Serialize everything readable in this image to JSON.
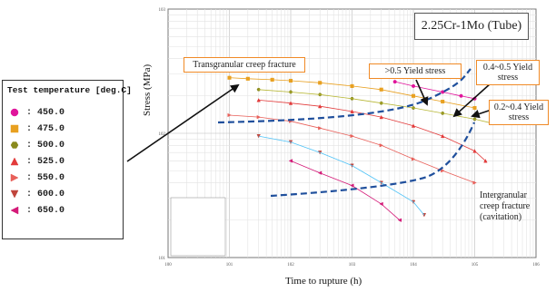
{
  "chart_data": {
    "type": "scatter",
    "title": "2.25Cr-1Mo (Tube)",
    "xlabel": "Time to rupture (h)",
    "ylabel": "Stress (MPa)",
    "x_scale": "log",
    "y_scale": "log",
    "xlim": [
      1,
      1000000
    ],
    "ylim": [
      10,
      1000
    ],
    "grid": true,
    "legend_title": "Test temperature [deg.C]",
    "legend_position": "external-left",
    "series": [
      {
        "name": ": 450.0",
        "marker": "circle",
        "color": "#e0149b",
        "points": [
          [
            5000,
            260
          ],
          [
            10000,
            240
          ],
          [
            30000,
            215
          ],
          [
            60000,
            200
          ],
          [
            100000,
            190
          ]
        ]
      },
      {
        "name": ": 475.0",
        "marker": "square",
        "color": "#e8a020",
        "points": [
          [
            10,
            280
          ],
          [
            20,
            275
          ],
          [
            50,
            270
          ],
          [
            100,
            265
          ],
          [
            300,
            255
          ],
          [
            1000,
            240
          ],
          [
            3000,
            225
          ],
          [
            10000,
            200
          ],
          [
            30000,
            180
          ],
          [
            100000,
            160
          ]
        ]
      },
      {
        "name": ": 500.0",
        "marker": "hexagon",
        "color": "#8a8a1c",
        "points": [
          [
            30,
            225
          ],
          [
            100,
            215
          ],
          [
            300,
            205
          ],
          [
            1000,
            190
          ],
          [
            3000,
            175
          ],
          [
            10000,
            160
          ],
          [
            30000,
            145
          ],
          [
            100000,
            130
          ],
          [
            200000,
            120
          ]
        ]
      },
      {
        "name": ": 525.0",
        "marker": "triangle-up",
        "color": "#e23b3b",
        "points": [
          [
            30,
            185
          ],
          [
            100,
            175
          ],
          [
            300,
            165
          ],
          [
            1000,
            150
          ],
          [
            3000,
            135
          ],
          [
            10000,
            115
          ],
          [
            30000,
            95
          ],
          [
            100000,
            72
          ],
          [
            150000,
            60
          ]
        ]
      },
      {
        "name": ": 550.0",
        "marker": "triangle-right",
        "color": "#e8605a",
        "points": [
          [
            10,
            140
          ],
          [
            30,
            135
          ],
          [
            100,
            125
          ],
          [
            300,
            110
          ],
          [
            1000,
            95
          ],
          [
            3000,
            80
          ],
          [
            10000,
            62
          ],
          [
            30000,
            50
          ],
          [
            100000,
            40
          ]
        ]
      },
      {
        "name": ": 600.0",
        "marker": "triangle-down",
        "color": "#c0453c",
        "points": [
          [
            30,
            95
          ],
          [
            100,
            85
          ],
          [
            300,
            70
          ],
          [
            1000,
            55
          ],
          [
            3000,
            40
          ],
          [
            10000,
            28
          ],
          [
            15000,
            22
          ]
        ]
      },
      {
        "name": ": 650.0",
        "marker": "triangle-left",
        "color": "#d41a78",
        "points": [
          [
            100,
            60
          ],
          [
            300,
            48
          ],
          [
            1000,
            38
          ],
          [
            3000,
            27
          ],
          [
            6000,
            20
          ]
        ]
      }
    ],
    "annotations": [
      "Transgranular creep fracture",
      ">0.5 Yield stress",
      "0.4~0.5 Yield stress",
      "0.2~0.4 Yield stress",
      "Intergranular creep fracture (cavitation)"
    ]
  },
  "legend": {
    "title": "Test temperature [deg.C]",
    "items": [
      {
        "label": ": 450.0",
        "marker": "circle",
        "color": "#e0149b"
      },
      {
        "label": ": 475.0",
        "marker": "square",
        "color": "#e8a020"
      },
      {
        "label": ": 500.0",
        "marker": "hexagon",
        "color": "#8a8a1c"
      },
      {
        "label": ": 525.0",
        "marker": "triangle-up",
        "color": "#e23b3b"
      },
      {
        "label": ": 550.0",
        "marker": "triangle-right",
        "color": "#e8605a"
      },
      {
        "label": ": 600.0",
        "marker": "triangle-down",
        "color": "#c0453c"
      },
      {
        "label": ": 650.0",
        "marker": "triangle-left",
        "color": "#d41a78"
      }
    ]
  },
  "annotations": {
    "transgranular": "Transgranular creep fracture",
    "gt05": ">0.5 Yield stress",
    "r0405": "0.4~0.5 Yield stress",
    "r0204": "0.2~0.4 Yield stress",
    "intergranular": "Intergranular creep fracture (cavitation)"
  }
}
